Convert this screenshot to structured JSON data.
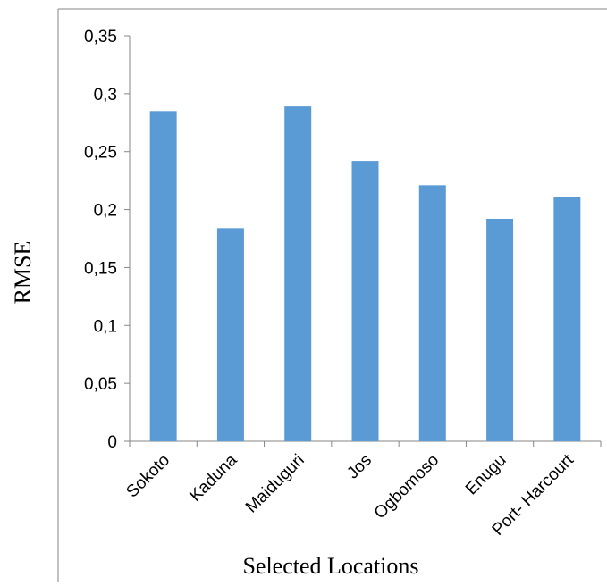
{
  "chart_data": {
    "type": "bar",
    "title": "",
    "xlabel": "Selected Locations",
    "ylabel": "RMSE",
    "categories": [
      "Sokoto",
      "Kaduna",
      "Maiduguri",
      "Jos",
      "Ogbomoso",
      "Enugu",
      "Port- Harcourt"
    ],
    "values": [
      0.285,
      0.184,
      0.289,
      0.242,
      0.221,
      0.192,
      0.211
    ],
    "ylim": [
      0,
      0.35
    ],
    "yticks": [
      0,
      0.05,
      0.1,
      0.15,
      0.2,
      0.25,
      0.3,
      0.35
    ],
    "ytick_labels": [
      "0",
      "0,05",
      "0,1",
      "0,15",
      "0,2",
      "0,25",
      "0,3",
      "0,35"
    ],
    "grid": false,
    "legend": "none",
    "colors": {
      "bar": "#5b9bd5",
      "axis": "#868686",
      "border": "#868686"
    }
  }
}
